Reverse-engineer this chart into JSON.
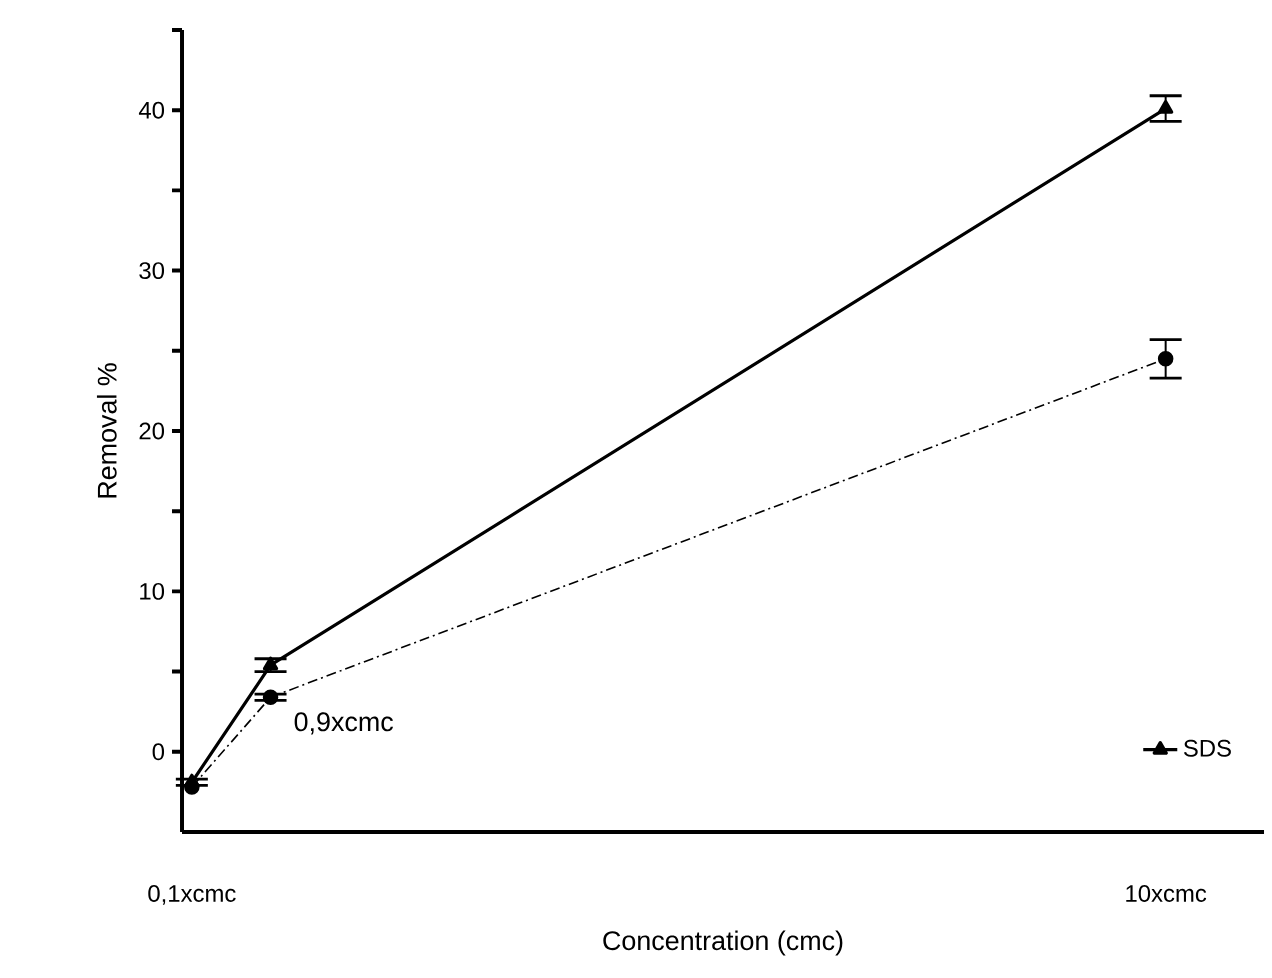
{
  "chart_data": {
    "type": "line",
    "xlabel": "Concentration (cmc)",
    "ylabel": "Removal %",
    "xlim": [
      0,
      11
    ],
    "xticks": [
      {
        "value": 0.1,
        "label": "0,1xcmc"
      },
      {
        "value": 10,
        "label": "10xcmc"
      }
    ],
    "ylim": [
      -5,
      45
    ],
    "yticks": [
      0,
      {
        "value": 5,
        "label": null
      },
      10,
      {
        "value": 15,
        "label": null
      },
      20,
      {
        "value": 25,
        "label": null
      },
      30,
      {
        "value": 35,
        "label": null
      },
      40,
      {
        "value": 45,
        "label": null
      }
    ],
    "x": [
      0.1,
      0.9,
      10
    ],
    "series": [
      {
        "name": "SDS",
        "color": "#000000",
        "marker": "triangle",
        "line_style": "solid",
        "values": [
          -1.9,
          5.4,
          40.1
        ],
        "errors": [
          0.2,
          0.4,
          0.8
        ]
      },
      {
        "color": "#000000",
        "marker": "circle",
        "line_style": "dashdot",
        "values": [
          -2.2,
          3.4,
          24.5
        ],
        "errors": [
          null,
          0.2,
          1.2
        ]
      }
    ],
    "annotations": [
      {
        "text": "0,9xcmc",
        "x": 0.9,
        "y": 3.4
      }
    ],
    "legend": "bottom right",
    "grid": false
  }
}
